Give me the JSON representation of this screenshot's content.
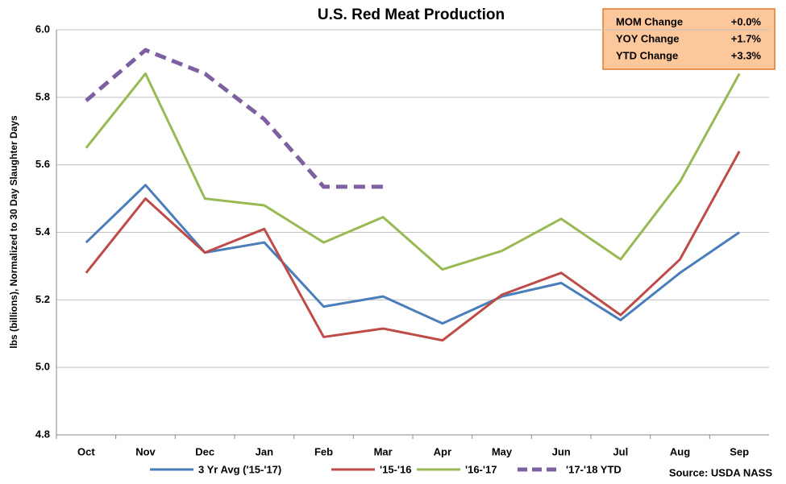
{
  "chart_data": {
    "type": "line",
    "title": "U.S. Red Meat Production",
    "y_label": "lbs (billions), Normalized to 30 Day Slaughter Days",
    "categories": [
      "Oct",
      "Nov",
      "Dec",
      "Jan",
      "Feb",
      "Mar",
      "Apr",
      "May",
      "Jun",
      "Jul",
      "Aug",
      "Sep"
    ],
    "series": [
      {
        "name": "3 Yr Avg ('15-'17)",
        "color": "#4a7ebb",
        "values": [
          5.37,
          5.54,
          5.34,
          5.37,
          5.18,
          5.21,
          5.13,
          5.21,
          5.25,
          5.14,
          5.28,
          5.4
        ]
      },
      {
        "name": "'15-'16",
        "color": "#be4b48",
        "values": [
          5.28,
          5.5,
          5.34,
          5.41,
          5.09,
          5.115,
          5.08,
          5.215,
          5.28,
          5.155,
          5.32,
          5.64
        ]
      },
      {
        "name": "'16-'17",
        "color": "#98b954",
        "values": [
          5.65,
          5.87,
          5.5,
          5.48,
          5.37,
          5.445,
          5.29,
          5.345,
          5.44,
          5.32,
          5.55,
          5.87
        ]
      },
      {
        "name": "'17-'18 YTD",
        "color": "#7d60a0",
        "dashed": true,
        "values": [
          5.79,
          5.94,
          5.87,
          5.735,
          5.535,
          5.535,
          null,
          null,
          null,
          null,
          null,
          null
        ]
      }
    ],
    "ylim": [
      4.8,
      6.0
    ],
    "yticks": [
      {
        "value": 4.8,
        "label": "4.8"
      },
      {
        "value": 5.0,
        "label": "5.0"
      },
      {
        "value": 5.2,
        "label": "5.2"
      },
      {
        "value": 5.4,
        "label": "5.4"
      },
      {
        "value": 5.6,
        "label": "5.6"
      },
      {
        "value": 5.8,
        "label": "5.8"
      },
      {
        "value": 6.0,
        "label": "6.0"
      }
    ],
    "grid": true,
    "legend": "bottom",
    "info_box": [
      {
        "label": "MOM Change",
        "value": "+0.0%"
      },
      {
        "label": "YOY Change",
        "value": "+1.7%"
      },
      {
        "label": "YTD Change",
        "value": "+3.3%"
      }
    ],
    "source": "Source: USDA NASS"
  }
}
